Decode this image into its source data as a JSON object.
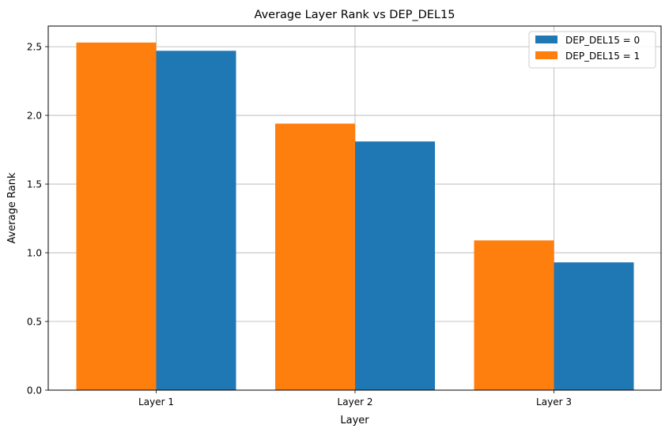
{
  "chart_data": {
    "type": "bar",
    "title": "Average Layer Rank vs DEP_DEL15",
    "xlabel": "Layer",
    "ylabel": "Average Rank",
    "categories": [
      "Layer 1",
      "Layer 2",
      "Layer 3"
    ],
    "series": [
      {
        "name": "DEP_DEL15 = 0",
        "color": "#1f77b4",
        "values": [
          2.47,
          1.81,
          0.93
        ]
      },
      {
        "name": "DEP_DEL15 = 1",
        "color": "#ff7f0e",
        "values": [
          2.53,
          1.94,
          1.09
        ]
      }
    ],
    "bar_order": [
      "DEP_DEL15 = 1",
      "DEP_DEL15 = 0"
    ],
    "ylim": [
      0,
      2.65
    ],
    "yticks": [
      "0.0",
      "0.5",
      "1.0",
      "1.5",
      "2.0",
      "2.5"
    ],
    "grid": true,
    "legend": "top-right"
  }
}
